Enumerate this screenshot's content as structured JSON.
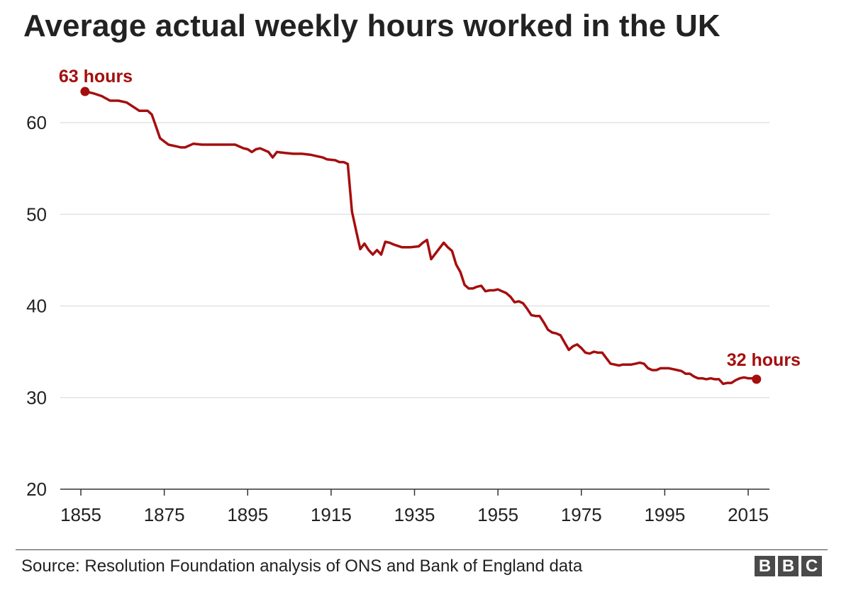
{
  "title": "Average actual weekly hours worked in the UK",
  "source": "Source: Resolution Foundation analysis of ONS and Bank of England data",
  "logo": [
    "B",
    "B",
    "C"
  ],
  "colors": {
    "line": "#a50e0e",
    "grid": "#dddddd",
    "axis": "#333333",
    "text": "#222222",
    "logo_bg": "#4a4a4a"
  },
  "chart_data": {
    "type": "line",
    "title": "Average actual weekly hours worked in the UK",
    "xlabel": "",
    "ylabel": "",
    "xlim": [
      1850,
      2022
    ],
    "ylim": [
      20,
      65
    ],
    "x_ticks": [
      "1855",
      "1875",
      "1895",
      "1915",
      "1935",
      "1955",
      "1975",
      "1995",
      "2015"
    ],
    "y_ticks": [
      "20",
      "30",
      "40",
      "50",
      "60"
    ],
    "grid": true,
    "annotations": [
      {
        "text": "63 hours",
        "x": 1856,
        "y": 63.4
      },
      {
        "text": "32 hours",
        "x": 2017,
        "y": 32.0
      }
    ],
    "series": [
      {
        "x": [
          1856,
          1858,
          1860,
          1862,
          1864,
          1866,
          1868,
          1869,
          1870,
          1871,
          1872,
          1873,
          1874,
          1876,
          1878,
          1879,
          1880,
          1882,
          1884,
          1886,
          1888,
          1890,
          1891,
          1892,
          1893,
          1894,
          1895,
          1896,
          1897,
          1898,
          1899,
          1900,
          1901,
          1902,
          1904,
          1906,
          1908,
          1910,
          1912,
          1913,
          1914,
          1916,
          1917,
          1918,
          1919,
          1920,
          1921,
          1922,
          1923,
          1924,
          1925,
          1926,
          1927,
          1928,
          1929,
          1930,
          1932,
          1934,
          1936,
          1937,
          1938,
          1939,
          1942,
          1943,
          1944,
          1945,
          1946,
          1947,
          1948,
          1949,
          1950,
          1951,
          1952,
          1953,
          1954,
          1955,
          1956,
          1957,
          1958,
          1959,
          1960,
          1961,
          1962,
          1963,
          1964,
          1965,
          1966,
          1967,
          1968,
          1969,
          1970,
          1971,
          1972,
          1973,
          1974,
          1975,
          1976,
          1977,
          1978,
          1979,
          1980,
          1981,
          1982,
          1983,
          1984,
          1985,
          1986,
          1987,
          1988,
          1989,
          1990,
          1991,
          1992,
          1993,
          1994,
          1995,
          1996,
          1997,
          1998,
          1999,
          2000,
          2001,
          2002,
          2003,
          2004,
          2005,
          2006,
          2007,
          2008,
          2009,
          2010,
          2011,
          2012,
          2013,
          2014,
          2015,
          2016,
          2017
        ],
        "values": [
          63.4,
          63.2,
          62.9,
          62.4,
          62.4,
          62.2,
          61.6,
          61.3,
          61.3,
          61.3,
          60.9,
          59.6,
          58.3,
          57.6,
          57.4,
          57.3,
          57.3,
          57.7,
          57.6,
          57.6,
          57.6,
          57.6,
          57.6,
          57.6,
          57.4,
          57.2,
          57.1,
          56.8,
          57.1,
          57.2,
          57.0,
          56.8,
          56.2,
          56.8,
          56.7,
          56.6,
          56.6,
          56.5,
          56.3,
          56.2,
          56.0,
          55.9,
          55.7,
          55.7,
          55.5,
          50.3,
          48.2,
          46.2,
          46.8,
          46.1,
          45.6,
          46.1,
          45.6,
          47.0,
          46.9,
          46.7,
          46.4,
          46.4,
          46.5,
          46.9,
          47.2,
          45.1,
          46.9,
          46.4,
          46.0,
          44.5,
          43.7,
          42.3,
          41.9,
          41.9,
          42.1,
          42.2,
          41.6,
          41.7,
          41.7,
          41.8,
          41.6,
          41.4,
          41.0,
          40.4,
          40.5,
          40.3,
          39.7,
          39.0,
          38.9,
          38.9,
          38.2,
          37.4,
          37.1,
          37.0,
          36.8,
          36.0,
          35.2,
          35.6,
          35.8,
          35.4,
          34.9,
          34.8,
          35.0,
          34.9,
          34.9,
          34.3,
          33.7,
          33.6,
          33.5,
          33.6,
          33.6,
          33.6,
          33.7,
          33.8,
          33.7,
          33.2,
          33.0,
          33.0,
          33.2,
          33.2,
          33.2,
          33.1,
          33.0,
          32.9,
          32.6,
          32.6,
          32.3,
          32.1,
          32.1,
          32.0,
          32.1,
          32.0,
          32.0,
          31.5,
          31.6,
          31.6,
          31.9,
          32.1,
          32.2,
          32.1,
          32.1,
          32.0
        ]
      }
    ]
  }
}
